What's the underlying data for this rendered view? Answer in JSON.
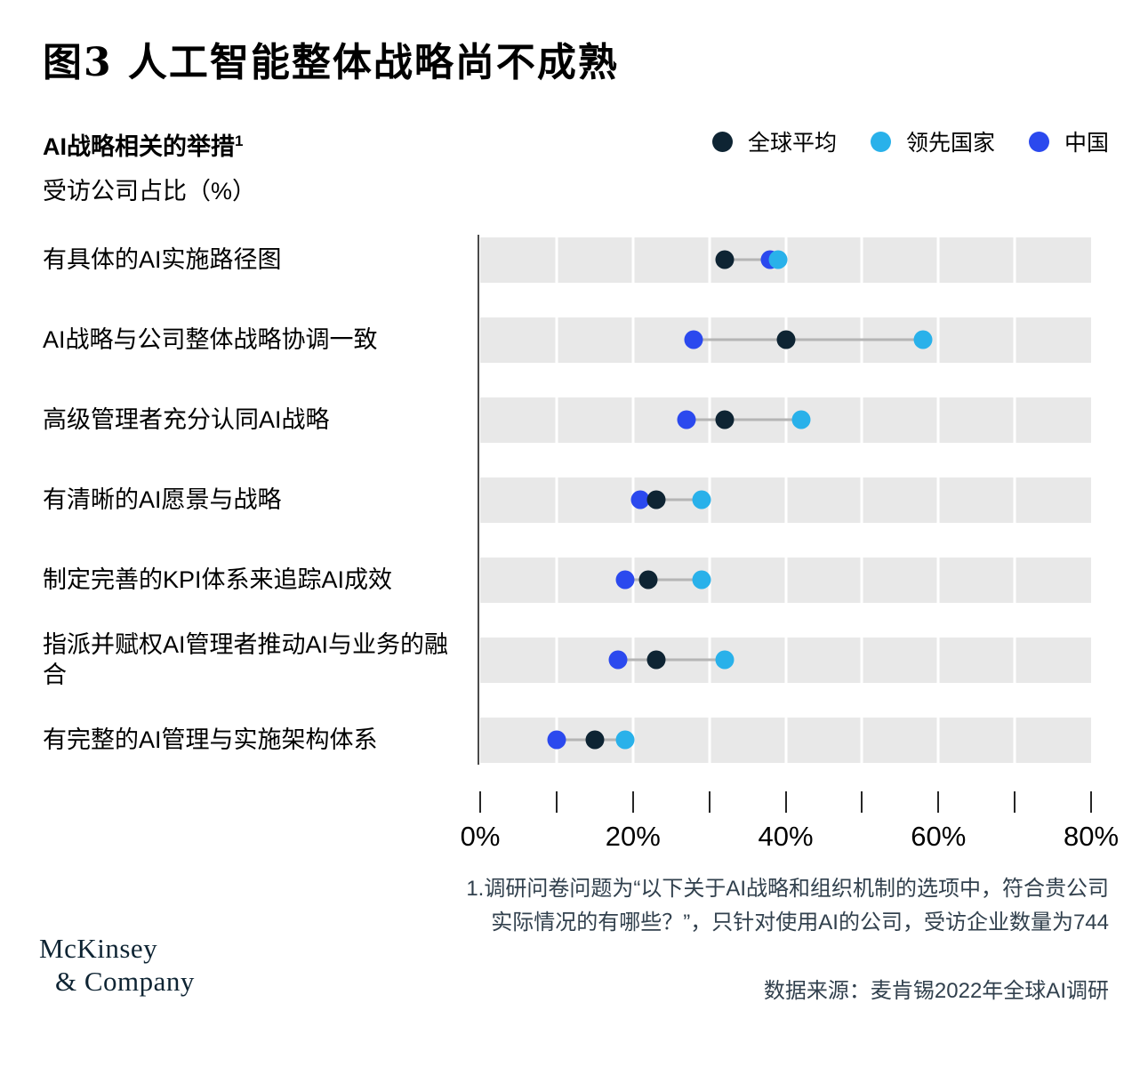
{
  "header": {
    "title": "图3 人工智能整体战略尚不成熟",
    "subtitle": "AI战略相关的举措",
    "subtitle_superscript": "1",
    "unit_line": "受访公司占比（%）"
  },
  "legend": {
    "position": "top-right",
    "items": [
      {
        "id": "global-average",
        "label": "全球平均",
        "color": "#0e2433"
      },
      {
        "id": "leading-countries",
        "label": "领先国家",
        "color": "#29b1ea"
      },
      {
        "id": "china",
        "label": "中国",
        "color": "#2b49ee"
      }
    ]
  },
  "chart_data": {
    "type": "scatter",
    "subtype": "dumbbell-dot-plot",
    "title": "图3 人工智能整体战略尚不成熟",
    "unit": "受访公司占比（%）",
    "categories": [
      "有具体的AI实施路径图",
      "AI战略与公司整体战略协调一致",
      "高级管理者充分认同AI战略",
      "有清晰的AI愿景与战略",
      "制定完善的KPI体系来追踪AI成效",
      "指派并赋权AI管理者推动AI与业务的融合",
      "有完整的AI管理与实施架构体系"
    ],
    "series": [
      {
        "id": "global-average",
        "name": "全球平均",
        "color": "#0e2433",
        "values": [
          32,
          40,
          32,
          23,
          22,
          23,
          15
        ]
      },
      {
        "id": "leading-countries",
        "name": "领先国家",
        "color": "#29b1ea",
        "values": [
          39,
          58,
          42,
          29,
          29,
          32,
          19
        ]
      },
      {
        "id": "china",
        "name": "中国",
        "color": "#2b49ee",
        "values": [
          38,
          28,
          27,
          21,
          19,
          18,
          10
        ]
      }
    ],
    "xlim": [
      0,
      80
    ],
    "x_tick_step": 10,
    "x_axis_labels": [
      {
        "value": 0,
        "label": "0%"
      },
      {
        "value": 20,
        "label": "20%"
      },
      {
        "value": 40,
        "label": "40%"
      },
      {
        "value": 60,
        "label": "60%"
      },
      {
        "value": 80,
        "label": "80%"
      }
    ],
    "band_color": "#e8e8e8",
    "connector_color": "#b5b5b5",
    "grid": "white gaps on gray bands every 10%",
    "legend_position": "top-right"
  },
  "footnotes": {
    "lines": [
      "1.调研问卷问题为“以下关于AI战略和组织机制的选项中，符合贵公司",
      "实际情况的有哪些？”，只针对使用AI的公司，受访企业数量为744"
    ],
    "source": "数据来源：麦肯锡2022年全球AI调研"
  },
  "logo": {
    "line1": "McKinsey",
    "line2": "& Company"
  }
}
